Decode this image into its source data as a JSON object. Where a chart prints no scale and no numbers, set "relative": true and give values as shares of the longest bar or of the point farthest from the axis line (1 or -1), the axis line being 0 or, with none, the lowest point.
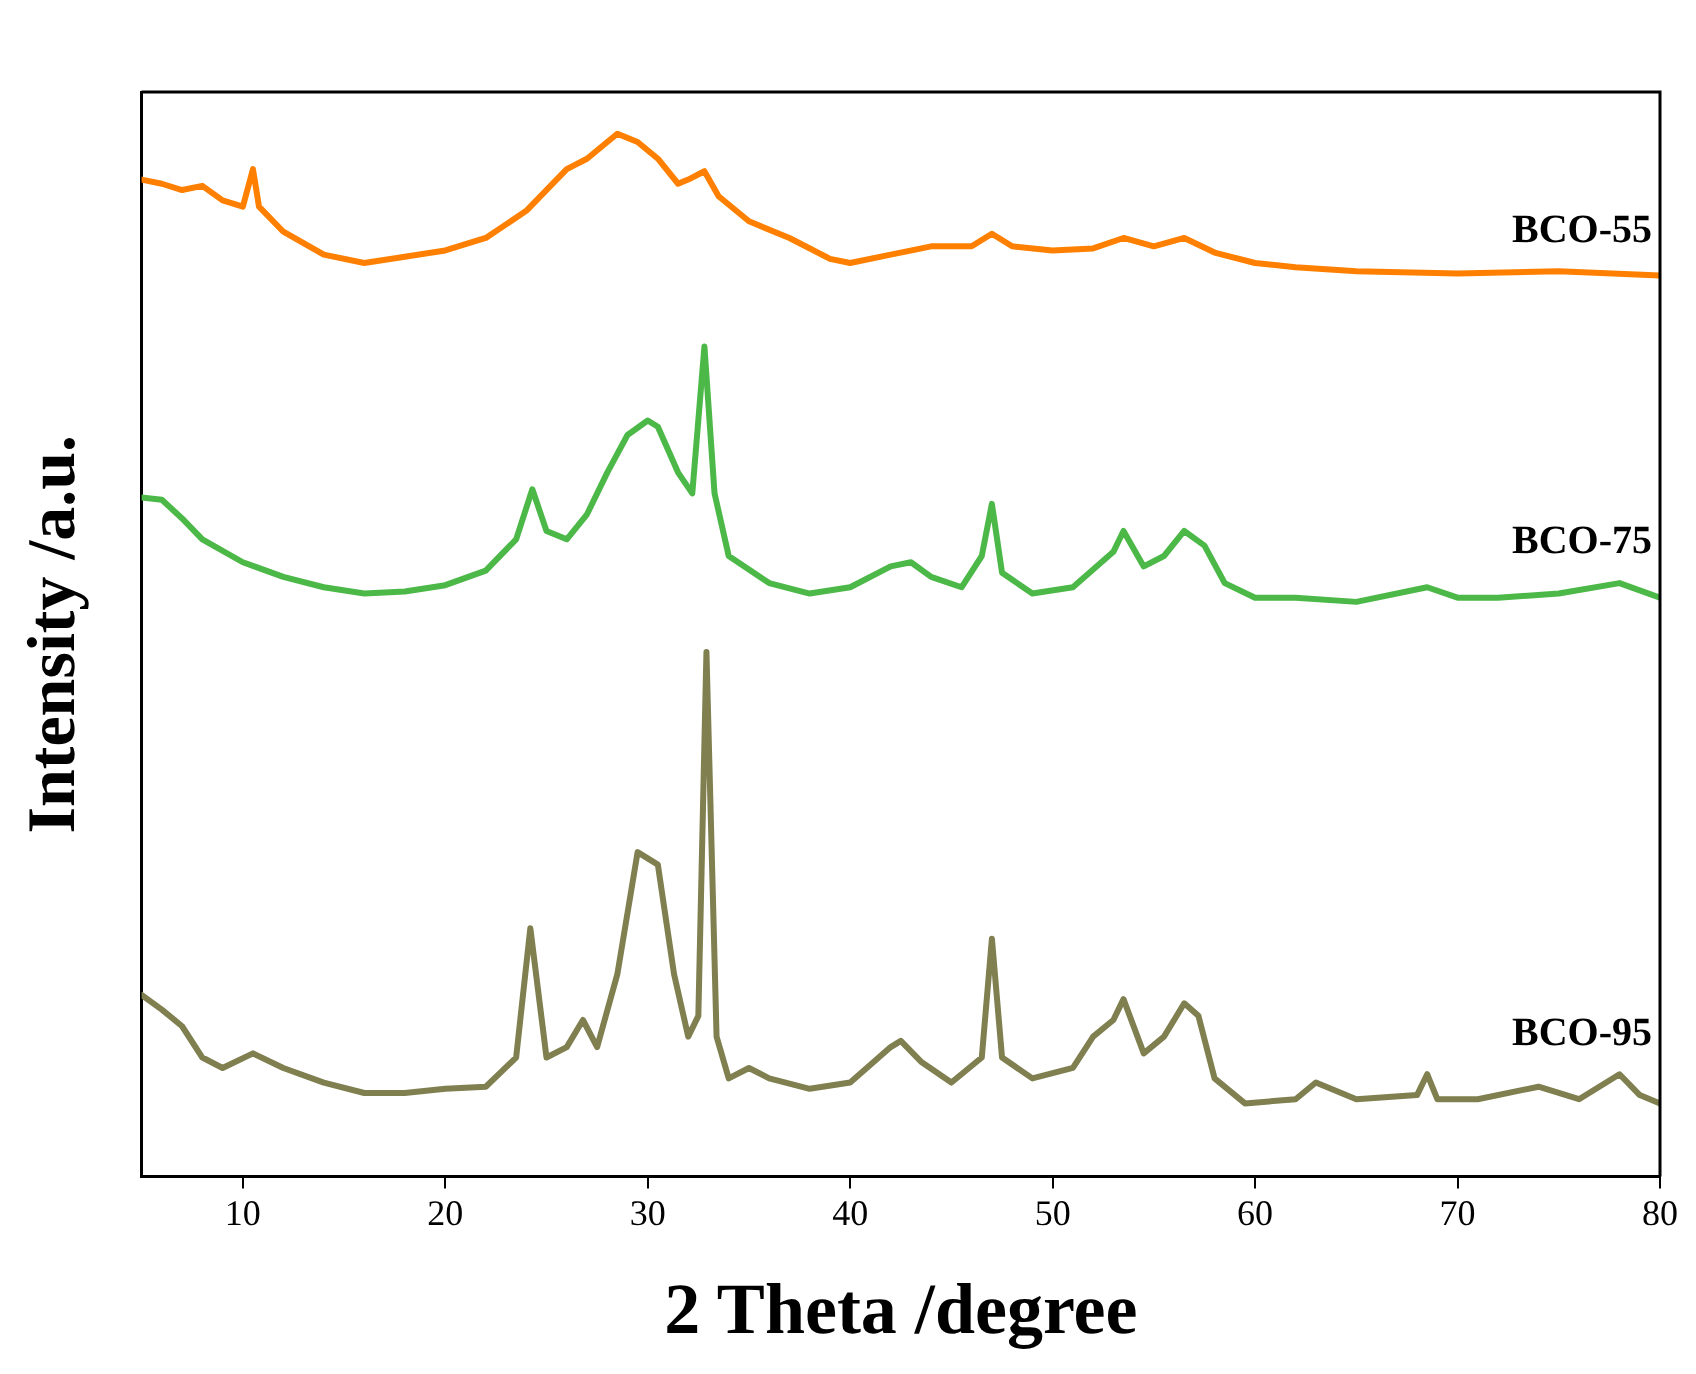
{
  "chart_data": {
    "type": "line",
    "relative": true,
    "xlabel": "2 Theta /degree",
    "ylabel": "Intensity /a.u.",
    "xlim": [
      5,
      80
    ],
    "xticks": [
      10,
      20,
      30,
      40,
      50,
      60,
      70,
      80
    ],
    "grid": false,
    "legend": false,
    "marker": "none",
    "line_style": "solid",
    "series": [
      {
        "name": "BCO-55",
        "color": "#ff8000",
        "x": [
          5,
          6,
          7,
          8,
          9,
          10,
          10.5,
          10.8,
          12,
          14,
          16,
          18,
          20,
          22,
          24,
          26,
          27,
          28,
          28.5,
          29.5,
          30.5,
          31.5,
          32,
          32.8,
          33.5,
          35,
          37,
          39,
          40,
          42,
          44,
          46,
          47,
          48,
          50,
          52,
          53.5,
          55,
          56.5,
          58,
          60,
          62,
          65,
          70,
          75,
          80
        ],
        "values": [
          0.956,
          0.952,
          0.946,
          0.95,
          0.936,
          0.93,
          0.966,
          0.93,
          0.906,
          0.884,
          0.876,
          0.882,
          0.888,
          0.9,
          0.926,
          0.966,
          0.976,
          0.992,
          1,
          0.992,
          0.976,
          0.952,
          0.956,
          0.964,
          0.94,
          0.916,
          0.9,
          0.88,
          0.876,
          0.884,
          0.892,
          0.892,
          0.904,
          0.892,
          0.888,
          0.89,
          0.9,
          0.892,
          0.9,
          0.886,
          0.876,
          0.872,
          0.868,
          0.866,
          0.868,
          0.864
        ]
      },
      {
        "name": "BCO-75",
        "color": "#4cb848",
        "x": [
          5,
          6,
          7,
          8,
          10,
          12,
          14,
          16,
          18,
          20,
          22,
          23.5,
          24.3,
          25,
          26,
          27,
          28,
          29,
          30,
          30.5,
          31.5,
          32.2,
          32.8,
          33.3,
          34,
          36,
          38,
          40,
          42,
          43,
          44,
          45.5,
          46.5,
          47,
          47.5,
          49,
          51,
          53,
          53.5,
          54.5,
          55.5,
          56.5,
          57.5,
          58.5,
          60,
          62,
          65,
          68.5,
          70,
          72,
          75,
          78,
          80
        ],
        "values": [
          0.651,
          0.649,
          0.631,
          0.611,
          0.589,
          0.575,
          0.565,
          0.559,
          0.561,
          0.567,
          0.581,
          0.611,
          0.659,
          0.619,
          0.611,
          0.635,
          0.675,
          0.711,
          0.725,
          0.719,
          0.675,
          0.655,
          0.796,
          0.655,
          0.595,
          0.569,
          0.559,
          0.565,
          0.585,
          0.589,
          0.575,
          0.565,
          0.595,
          0.645,
          0.579,
          0.559,
          0.565,
          0.599,
          0.619,
          0.585,
          0.595,
          0.619,
          0.605,
          0.569,
          0.555,
          0.555,
          0.551,
          0.565,
          0.555,
          0.555,
          0.559,
          0.569,
          0.555
        ]
      },
      {
        "name": "BCO-95",
        "color": "#7f7f50",
        "x": [
          5,
          6,
          7,
          8,
          9,
          10.5,
          12,
          14,
          16,
          18,
          20,
          22,
          23.5,
          24.2,
          25,
          26,
          26.8,
          27.5,
          28.5,
          29.5,
          30.5,
          31.3,
          32,
          32.5,
          32.9,
          33.4,
          34,
          35,
          36,
          38,
          40,
          42,
          42.5,
          43.5,
          45,
          46.5,
          47,
          47.5,
          49,
          51,
          52,
          53,
          53.5,
          54.5,
          55.5,
          56.5,
          57.2,
          58,
          59.5,
          62,
          63,
          65,
          68,
          68.5,
          69,
          71,
          74,
          76,
          78,
          79,
          80
        ],
        "values": [
          0.174,
          0.16,
          0.144,
          0.114,
          0.104,
          0.118,
          0.104,
          0.09,
          0.08,
          0.08,
          0.084,
          0.086,
          0.114,
          0.238,
          0.114,
          0.124,
          0.15,
          0.124,
          0.194,
          0.311,
          0.299,
          0.194,
          0.134,
          0.154,
          0.503,
          0.134,
          0.094,
          0.104,
          0.094,
          0.084,
          0.09,
          0.124,
          0.13,
          0.11,
          0.09,
          0.114,
          0.228,
          0.114,
          0.094,
          0.104,
          0.134,
          0.15,
          0.17,
          0.118,
          0.134,
          0.166,
          0.154,
          0.094,
          0.07,
          0.074,
          0.09,
          0.074,
          0.078,
          0.098,
          0.074,
          0.074,
          0.086,
          0.074,
          0.098,
          0.078,
          0.07
        ]
      }
    ]
  }
}
